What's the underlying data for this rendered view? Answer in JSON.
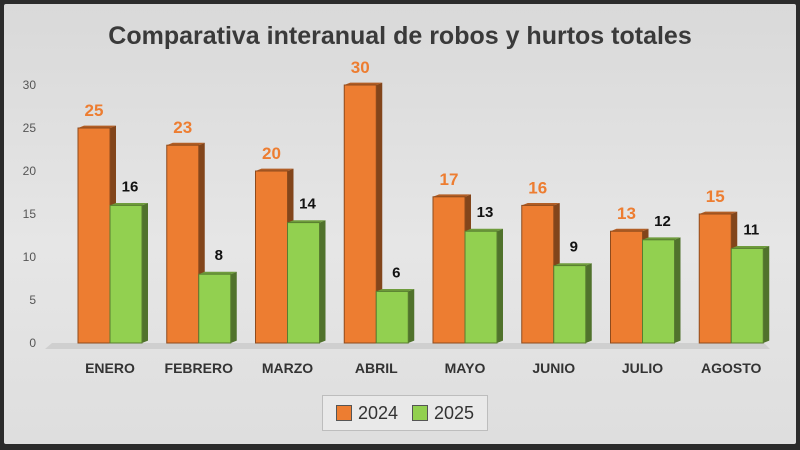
{
  "chart_data": {
    "type": "bar",
    "title": "Comparativa interanual de robos y hurtos totales",
    "categories": [
      "ENERO",
      "FEBRERO",
      "MARZO",
      "ABRIL",
      "MAYO",
      "JUNIO",
      "JULIO",
      "AGOSTO"
    ],
    "series": [
      {
        "name": "2024",
        "values": [
          25,
          23,
          20,
          30,
          17,
          16,
          13,
          15
        ],
        "color": "#ed7d31",
        "label_color": "#ed7d31"
      },
      {
        "name": "2025",
        "values": [
          16,
          8,
          14,
          6,
          13,
          9,
          12,
          11
        ],
        "color": "#92d050",
        "label_color": "#111111"
      }
    ],
    "ylim": [
      0,
      30
    ],
    "yticks": [
      0,
      5,
      10,
      15,
      20,
      25,
      30
    ],
    "grid": false,
    "legend": "bottom"
  }
}
